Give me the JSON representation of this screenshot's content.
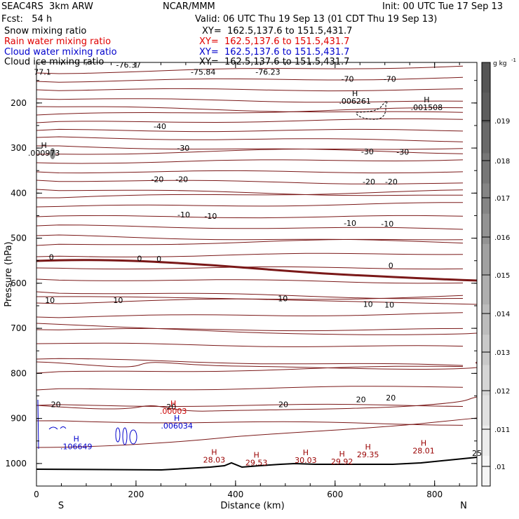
{
  "header": {
    "left": [
      {
        "text": "SEAC4RS  3km ARW",
        "color": "#000000"
      },
      {
        "text": "Fcst:   54 h",
        "color": "#000000"
      },
      {
        "text": "Snow mixing ratio",
        "color": "#000000"
      },
      {
        "text": "Rain water mixing ratio",
        "color": "#e00000"
      },
      {
        "text": "Cloud water mixing ratio",
        "color": "#0000cc"
      },
      {
        "text": "Cloud ice mixing ratio",
        "color": "#000000"
      }
    ],
    "center_top": "NCAR/MMM",
    "init": "Init: 00 UTC Tue 17 Sep 13",
    "valid": "Valid: 06 UTC Thu 19 Sep 13 (01 CDT Thu 19 Sep 13)",
    "xy": [
      {
        "text": "XY=  162.5,137.6 to 151.5,431.7",
        "color": "#000000"
      },
      {
        "text": "XY=  162.5,137.6 to 151.5,431.7",
        "color": "#e00000"
      },
      {
        "text": "XY=  162.5,137.6 to 151.5,431.7",
        "color": "#0000cc"
      },
      {
        "text": "XY=  162.5,137.6 to 151.5,431.7",
        "color": "#000000"
      }
    ]
  },
  "chart_data": {
    "type": "cross-section contour",
    "xlabel": "Distance (km)",
    "ylabel": "Pressure (hPa)",
    "xlim": [
      0,
      885
    ],
    "ylim": [
      1050,
      110
    ],
    "x_ticks": [
      0,
      200,
      400,
      600,
      800
    ],
    "y_ticks": [
      200,
      300,
      400,
      500,
      600,
      700,
      800,
      900,
      1000
    ],
    "end_labels": {
      "left": "S",
      "right": "N"
    },
    "colorbar": {
      "unit": "g kg",
      "unit_exp": "-1",
      "ticks": [
        ".019",
        ".018",
        ".017",
        ".016",
        ".015",
        ".014",
        ".013",
        ".012",
        ".011",
        ".01"
      ],
      "colors": [
        "#555555",
        "#5d5d5d",
        "#6a6a6a",
        "#777777",
        "#858585",
        "#939393",
        "#a1a1a1",
        "#afafaf",
        "#bcbcbc",
        "#c9c9c9",
        "#d5d5d5",
        "#e1e1e1",
        "#ececec",
        "#f5f5f5"
      ]
    },
    "contour_color": "#7a1818",
    "temperature_labels": [
      {
        "text": "77.1",
        "x": 12,
        "p": 137
      },
      {
        "text": "-76.37",
        "x": 185,
        "p": 122
      },
      {
        "text": "-75.84",
        "x": 335,
        "p": 137
      },
      {
        "text": "-76.23",
        "x": 465,
        "p": 137
      },
      {
        "text": "-70",
        "x": 625,
        "p": 153
      },
      {
        "text": "-70",
        "x": 710,
        "p": 153
      },
      {
        "text": "-40",
        "x": 248,
        "p": 258
      },
      {
        "text": "-30",
        "x": 295,
        "p": 306
      },
      {
        "text": "-30",
        "x": 665,
        "p": 314
      },
      {
        "text": "-30",
        "x": 736,
        "p": 315
      },
      {
        "text": "-20",
        "x": 243,
        "p": 375
      },
      {
        "text": "-20",
        "x": 292,
        "p": 375
      },
      {
        "text": "-20",
        "x": 668,
        "p": 381
      },
      {
        "text": "-20",
        "x": 713,
        "p": 381
      },
      {
        "text": "-10",
        "x": 296,
        "p": 454
      },
      {
        "text": "-10",
        "x": 350,
        "p": 457
      },
      {
        "text": "-10",
        "x": 630,
        "p": 473
      },
      {
        "text": "-10",
        "x": 705,
        "p": 474
      },
      {
        "text": "0",
        "x": 30,
        "p": 548
      },
      {
        "text": "0",
        "x": 207,
        "p": 551
      },
      {
        "text": "0",
        "x": 246,
        "p": 552
      },
      {
        "text": "0",
        "x": 712,
        "p": 567
      },
      {
        "text": "10",
        "x": 27,
        "p": 644
      },
      {
        "text": "10",
        "x": 164,
        "p": 644
      },
      {
        "text": "10",
        "x": 495,
        "p": 640
      },
      {
        "text": "10",
        "x": 666,
        "p": 652
      },
      {
        "text": "10",
        "x": 709,
        "p": 654
      },
      {
        "text": "20",
        "x": 39,
        "p": 875
      },
      {
        "text": "20",
        "x": 496,
        "p": 875
      },
      {
        "text": "20",
        "x": 652,
        "p": 864
      },
      {
        "text": "20",
        "x": 712,
        "p": 860
      },
      {
        "text": "20",
        "x": 271,
        "p": 880
      },
      {
        "text": "25",
        "x": 885,
        "p": 983
      }
    ],
    "high_labels": [
      {
        "value": ".000973",
        "x": 15,
        "p": 317,
        "color": "#000000"
      },
      {
        "value": ".006261",
        "x": 640,
        "p": 202,
        "color": "#000000"
      },
      {
        "value": ".001508",
        "x": 784,
        "p": 216,
        "color": "#000000"
      },
      {
        "value": ".00003",
        "x": 275,
        "p": 890,
        "color": "#cc0000"
      },
      {
        "value": ".006034",
        "x": 282,
        "p": 922,
        "color": "#0000cc"
      },
      {
        "value": ".106649",
        "x": 80,
        "p": 968,
        "color": "#0000cc"
      }
    ],
    "surface_high_labels": [
      {
        "value": "28.03",
        "x": 357,
        "p": 998
      },
      {
        "value": "29.53",
        "x": 442,
        "p": 1004
      },
      {
        "value": "30.03",
        "x": 541,
        "p": 999
      },
      {
        "value": "29.92",
        "x": 614,
        "p": 1002
      },
      {
        "value": "29.35",
        "x": 666,
        "p": 986
      },
      {
        "value": "28.01",
        "x": 778,
        "p": 978
      }
    ]
  }
}
